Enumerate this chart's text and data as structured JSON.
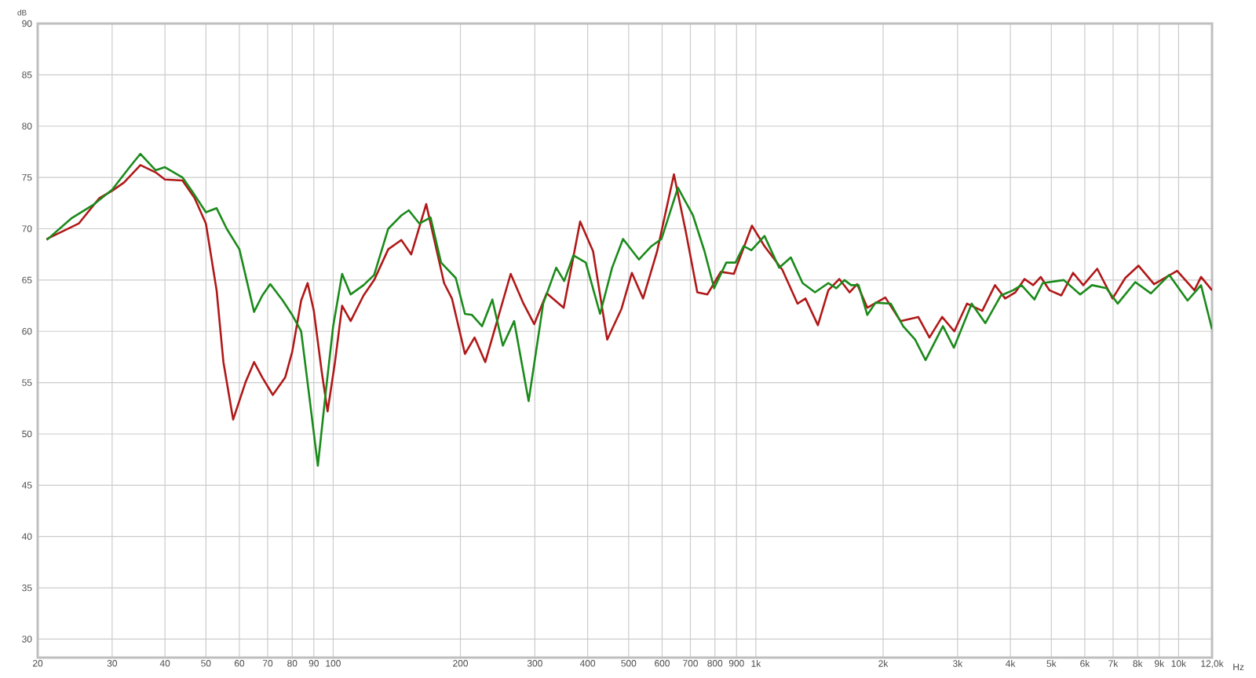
{
  "chart_data": {
    "type": "line",
    "xlabel": "Hz",
    "ylabel": "dB",
    "log": "x",
    "grid": true,
    "line_style": "solid",
    "xlim": [
      20,
      12000
    ],
    "ylim": [
      28.2,
      90
    ],
    "xticks": [
      20,
      30,
      40,
      50,
      60,
      70,
      80,
      90,
      100,
      200,
      300,
      400,
      500,
      600,
      700,
      800,
      900,
      {
        "value": 1000,
        "label": "1k"
      },
      {
        "value": 2000,
        "label": "2k"
      },
      {
        "value": 3000,
        "label": "3k"
      },
      {
        "value": 4000,
        "label": "4k"
      },
      {
        "value": 5000,
        "label": "5k"
      },
      {
        "value": 6000,
        "label": "6k"
      },
      {
        "value": 7000,
        "label": "7k"
      },
      {
        "value": 8000,
        "label": "8k"
      },
      {
        "value": 9000,
        "label": "9k"
      },
      {
        "value": 10000,
        "label": "10k"
      },
      {
        "value": 12000,
        "label": "12,0k"
      }
    ],
    "yticks": [
      30,
      35,
      40,
      45,
      50,
      55,
      60,
      65,
      70,
      75,
      80,
      85,
      90
    ],
    "series": [
      {
        "color": "#b01818",
        "x": [
          21,
          25,
          28,
          30,
          32,
          35,
          38,
          40,
          44,
          47,
          50,
          53,
          55,
          58,
          62,
          65,
          68,
          72,
          77,
          80,
          84,
          87,
          90,
          94,
          97,
          101,
          105,
          110,
          118,
          125,
          135,
          145,
          153,
          166,
          183,
          191,
          205,
          216,
          229,
          245,
          263,
          282,
          299,
          320,
          351,
          384,
          412,
          445,
          481,
          509,
          541,
          584,
          640,
          682,
          727,
          768,
          826,
          887,
          979,
          1048,
          1155,
          1255,
          1310,
          1402,
          1484,
          1575,
          1666,
          1736,
          1835,
          2024,
          2198,
          2422,
          2574,
          2758,
          2947,
          3158,
          3432,
          3679,
          3888,
          4110,
          4320,
          4530,
          4720,
          4950,
          5280,
          5630,
          5950,
          6420,
          6980,
          7480,
          8040,
          8750,
          9920,
          10900,
          11300,
          12000
        ],
        "values": [
          69.0,
          70.5,
          73.0,
          73.7,
          74.5,
          76.2,
          75.5,
          74.8,
          74.7,
          73.0,
          70.5,
          64.0,
          57.0,
          51.4,
          55.0,
          57.0,
          55.5,
          53.8,
          55.5,
          58.0,
          63.0,
          64.7,
          62.0,
          56.0,
          52.2,
          57.0,
          62.5,
          61.0,
          63.5,
          65.0,
          68.0,
          68.9,
          67.5,
          72.4,
          64.7,
          63.2,
          57.8,
          59.4,
          57.0,
          61.2,
          65.6,
          62.7,
          60.7,
          63.7,
          62.3,
          70.7,
          67.8,
          59.2,
          62.2,
          65.7,
          63.2,
          67.8,
          75.3,
          69.8,
          63.8,
          63.6,
          65.8,
          65.6,
          70.3,
          68.3,
          66.0,
          62.7,
          63.2,
          60.6,
          64.0,
          65.1,
          63.8,
          64.6,
          62.3,
          63.3,
          61.0,
          61.4,
          59.4,
          61.4,
          60.0,
          62.7,
          62.0,
          64.5,
          63.2,
          63.8,
          65.1,
          64.5,
          65.3,
          64.0,
          63.5,
          65.7,
          64.5,
          66.1,
          63.2,
          65.2,
          66.4,
          64.6,
          65.9,
          64.0,
          65.3,
          64.0
        ]
      },
      {
        "color": "#1a8a1a",
        "x": [
          21,
          24,
          27,
          30,
          33,
          35,
          38,
          40,
          44,
          47,
          50,
          53,
          56,
          60,
          65,
          68,
          71,
          76,
          80,
          84,
          87,
          92,
          96,
          100,
          105,
          110,
          118,
          125,
          135,
          145,
          151,
          160,
          170,
          180,
          195,
          205,
          213,
          225,
          238,
          252,
          268,
          290,
          314,
          337,
          352,
          370,
          396,
          428,
          457,
          485,
          529,
          566,
          598,
          654,
          710,
          756,
          797,
          851,
          895,
          935,
          976,
          1048,
          1135,
          1210,
          1290,
          1380,
          1484,
          1550,
          1620,
          1680,
          1750,
          1835,
          1920,
          2085,
          2230,
          2380,
          2520,
          2770,
          2940,
          3240,
          3490,
          3800,
          4060,
          4250,
          4560,
          4770,
          5350,
          5850,
          6240,
          6750,
          7180,
          7900,
          8600,
          9500,
          10500,
          11300,
          12000
        ],
        "values": [
          68.9,
          71.0,
          72.3,
          73.8,
          76.0,
          77.3,
          75.7,
          76.0,
          75.0,
          73.3,
          71.6,
          72.0,
          70.0,
          68.0,
          61.9,
          63.5,
          64.6,
          63.0,
          61.6,
          60.0,
          55.0,
          46.9,
          54.0,
          60.5,
          65.6,
          63.6,
          64.5,
          65.5,
          70.0,
          71.3,
          71.8,
          70.5,
          71.1,
          66.7,
          65.2,
          61.7,
          61.6,
          60.5,
          63.1,
          58.6,
          61.0,
          53.2,
          62.7,
          66.2,
          64.9,
          67.4,
          66.7,
          61.7,
          66.2,
          69.0,
          67.0,
          68.3,
          69.0,
          74.0,
          71.3,
          67.8,
          64.2,
          66.7,
          66.7,
          68.3,
          67.9,
          69.3,
          66.2,
          67.2,
          64.7,
          63.8,
          64.7,
          64.2,
          65.0,
          64.5,
          64.5,
          61.6,
          62.8,
          62.7,
          60.5,
          59.2,
          57.2,
          60.5,
          58.4,
          62.7,
          60.8,
          63.5,
          64.0,
          64.5,
          63.1,
          64.7,
          65.0,
          63.6,
          64.5,
          64.2,
          62.7,
          64.8,
          63.7,
          65.5,
          63.0,
          64.5,
          60.2
        ]
      }
    ]
  }
}
